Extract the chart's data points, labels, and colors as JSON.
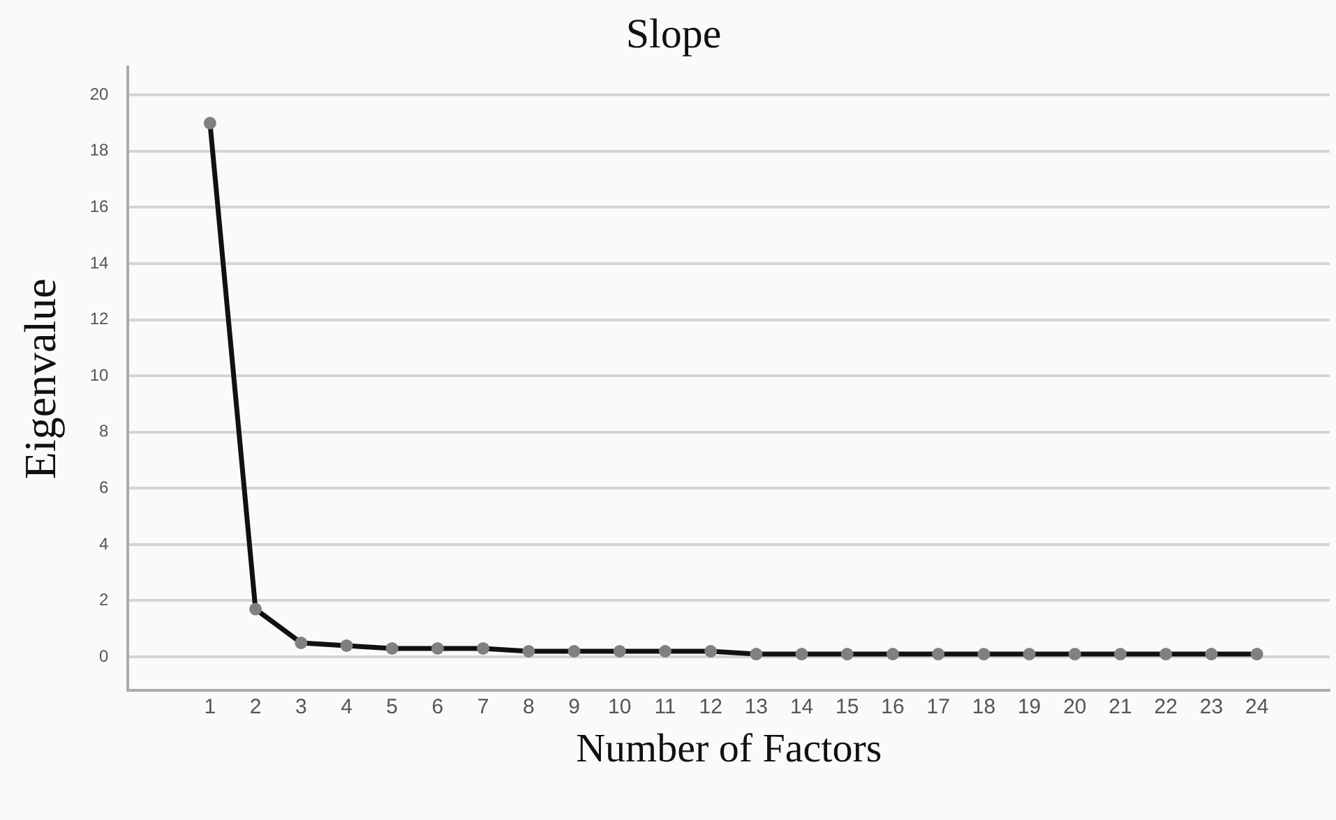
{
  "chart_data": {
    "type": "line",
    "title": "Slope",
    "xlabel": "Number of Factors",
    "ylabel": "Eigenvalue",
    "x": [
      1,
      2,
      3,
      4,
      5,
      6,
      7,
      8,
      9,
      10,
      11,
      12,
      13,
      14,
      15,
      16,
      17,
      18,
      19,
      20,
      21,
      22,
      23,
      24
    ],
    "series": [
      {
        "color": "#111111",
        "values": [
          19.0,
          1.7,
          0.5,
          0.4,
          0.3,
          0.3,
          0.3,
          0.2,
          0.2,
          0.2,
          0.2,
          0.2,
          0.1,
          0.1,
          0.1,
          0.1,
          0.1,
          0.1,
          0.1,
          0.1,
          0.1,
          0.1,
          0.1,
          0.1
        ]
      }
    ],
    "xlim": [
      -0.8,
      25.6
    ],
    "xticks": [
      1,
      2,
      3,
      4,
      5,
      6,
      7,
      8,
      9,
      10,
      11,
      12,
      13,
      14,
      15,
      16,
      17,
      18,
      19,
      20,
      21,
      22,
      23,
      24
    ],
    "ylim": [
      -1.2,
      21
    ],
    "yticks": [
      0,
      2,
      4,
      6,
      8,
      10,
      12,
      14,
      16,
      18,
      20
    ],
    "grid": "y",
    "legend": false,
    "marker": "circle",
    "line_style": "solid"
  }
}
